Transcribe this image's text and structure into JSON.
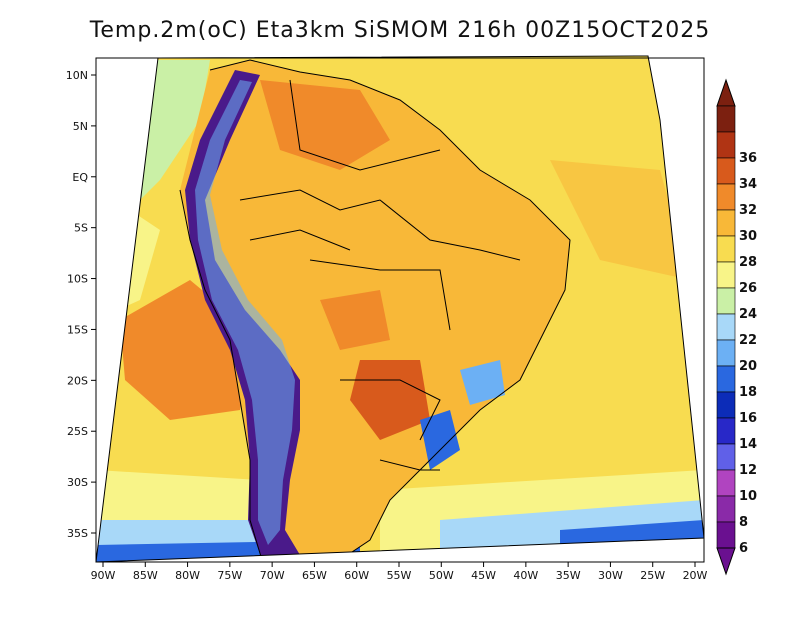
{
  "title": "Temp.2m(oC) Eta3km SiSMOM 216h 00Z15OCT2025",
  "map": {
    "lon_labels": [
      "90W",
      "85W",
      "80W",
      "75W",
      "70W",
      "65W",
      "60W",
      "55W",
      "50W",
      "45W",
      "40W",
      "35W",
      "30W",
      "25W",
      "20W"
    ],
    "lat_labels": [
      "10N",
      "5N",
      "EQ",
      "5S",
      "10S",
      "15S",
      "20S",
      "25S",
      "30S",
      "35S"
    ],
    "lon_range": [
      -90,
      -20
    ],
    "lat_range": [
      -38,
      11
    ]
  },
  "colorbar": {
    "labels": [
      "6",
      "8",
      "10",
      "12",
      "14",
      "16",
      "18",
      "20",
      "22",
      "24",
      "26",
      "28",
      "30",
      "32",
      "34",
      "36"
    ],
    "colors": [
      "#6a1090",
      "#8a2aa8",
      "#b044c0",
      "#6060e8",
      "#2828c8",
      "#0c2cb8",
      "#2a68e0",
      "#6cb0f4",
      "#a8d8f8",
      "#caf0a6",
      "#f8f488",
      "#f8dc50",
      "#f8b838",
      "#f08a2a",
      "#d85a1c",
      "#b03414",
      "#7c2010"
    ]
  },
  "colors": {
    "ocean_warm": "#f8dc50",
    "ocean_cool": "#f8f488",
    "land_base": "#f8b838",
    "land_hot": "#f08a2a",
    "andes": "#4a1a8a"
  }
}
